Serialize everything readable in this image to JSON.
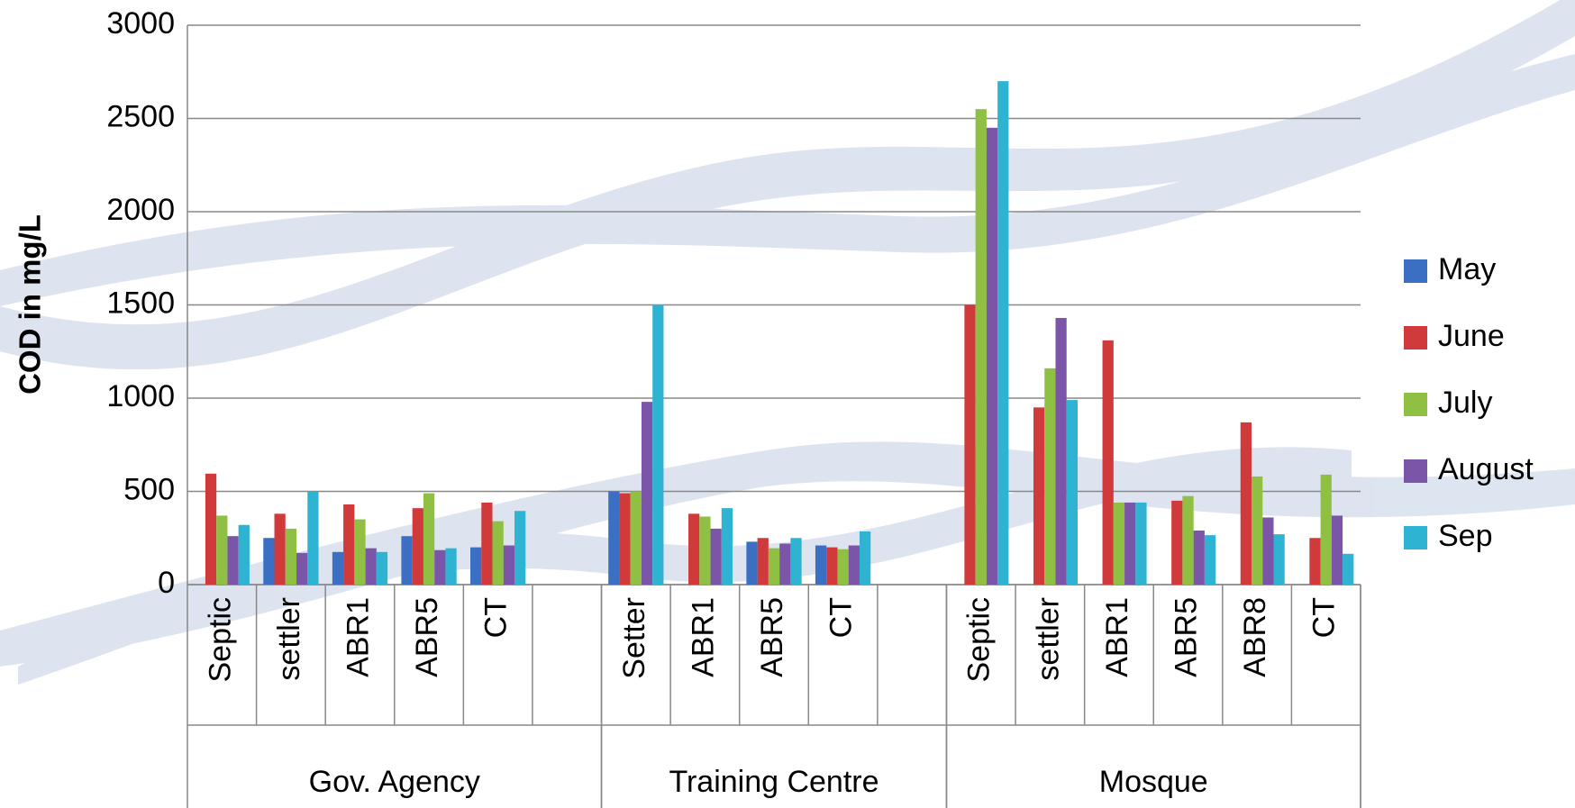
{
  "chart_data": {
    "type": "bar",
    "y_label": "COD in mg/L",
    "groups": [
      {
        "name": "Gov. Agency",
        "categories": [
          "Septic",
          "settler",
          "ABR1",
          "ABR5",
          "CT",
          null
        ]
      },
      {
        "name": "Training Centre",
        "categories": [
          "Setter",
          "ABR1",
          "ABR5",
          "CT",
          null
        ]
      },
      {
        "name": "Mosque",
        "categories": [
          "Septic",
          "settler",
          "ABR1",
          "ABR5",
          "ABR8",
          "CT"
        ]
      }
    ],
    "series": [
      {
        "name": "May",
        "color": "#3a6fc4",
        "values": [
          null,
          250,
          175,
          260,
          200,
          null,
          500,
          null,
          230,
          210,
          null,
          null,
          null,
          null,
          null,
          null,
          null
        ]
      },
      {
        "name": "June",
        "color": "#d03a3a",
        "values": [
          595,
          380,
          430,
          410,
          440,
          null,
          490,
          380,
          250,
          200,
          null,
          1500,
          950,
          1310,
          450,
          870,
          250
        ]
      },
      {
        "name": "July",
        "color": "#8fc043",
        "values": [
          370,
          300,
          350,
          490,
          340,
          null,
          500,
          365,
          195,
          190,
          null,
          2550,
          1160,
          440,
          475,
          580,
          590
        ]
      },
      {
        "name": "August",
        "color": "#7b55a8",
        "values": [
          260,
          170,
          195,
          185,
          210,
          null,
          980,
          300,
          220,
          210,
          null,
          2450,
          1430,
          440,
          290,
          360,
          370
        ]
      },
      {
        "name": "Sep",
        "color": "#2fb3d3",
        "values": [
          320,
          500,
          175,
          195,
          395,
          null,
          1500,
          410,
          250,
          285,
          null,
          2700,
          990,
          440,
          265,
          270,
          165
        ]
      }
    ],
    "ylim": [
      0,
      3000
    ],
    "yticks": [
      0,
      500,
      1000,
      1500,
      2000,
      2500,
      3000
    ],
    "grid": true,
    "legend": "right"
  }
}
